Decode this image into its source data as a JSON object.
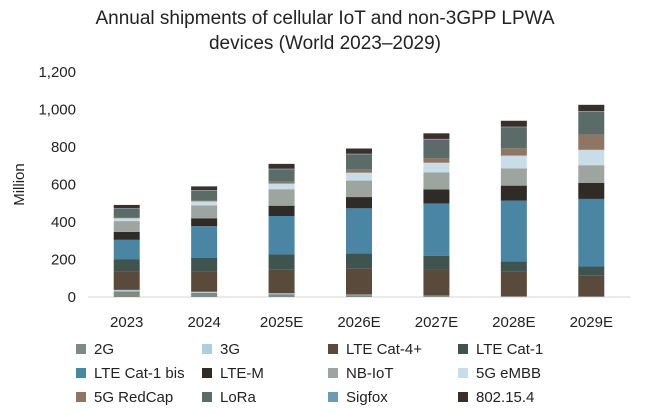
{
  "chart_data": {
    "type": "bar",
    "stacked": true,
    "title_lines": [
      "Annual shipments of cellular IoT and non-3GPP LPWA",
      "devices (World 2023–2029)"
    ],
    "ylabel": "Million",
    "xlabel": "",
    "ylim": [
      0,
      1200
    ],
    "yticks": [
      0,
      200,
      400,
      600,
      800,
      1000,
      1200
    ],
    "ytick_labels": [
      "0",
      "200",
      "400",
      "600",
      "800",
      "1,000",
      "1,200"
    ],
    "categories": [
      "2023",
      "2024",
      "2025E",
      "2026E",
      "2027E",
      "2028E",
      "2029E"
    ],
    "series": [
      {
        "name": "2G",
        "color": "#7d8b84",
        "values": [
          30,
          22,
          15,
          10,
          5,
          3,
          2
        ]
      },
      {
        "name": "3G",
        "color": "#aecdde",
        "values": [
          8,
          6,
          5,
          3,
          2,
          1,
          1
        ]
      },
      {
        "name": "LTE Cat-4+",
        "color": "#5a4a3c",
        "values": [
          100,
          110,
          125,
          140,
          140,
          130,
          110
        ]
      },
      {
        "name": "LTE Cat-1",
        "color": "#3f544f",
        "values": [
          62,
          70,
          82,
          80,
          72,
          55,
          50
        ]
      },
      {
        "name": "LTE Cat-1 bis",
        "color": "#4a85a4",
        "values": [
          105,
          170,
          205,
          240,
          280,
          325,
          360
        ]
      },
      {
        "name": "LTE-M",
        "color": "#2f2b27",
        "values": [
          42,
          42,
          55,
          60,
          75,
          80,
          85
        ]
      },
      {
        "name": "NB-IoT",
        "color": "#9ea5a0",
        "values": [
          58,
          68,
          88,
          88,
          90,
          92,
          95
        ]
      },
      {
        "name": "5G eMBB",
        "color": "#c9dde8",
        "values": [
          15,
          22,
          30,
          42,
          52,
          68,
          82
        ]
      },
      {
        "name": "5G RedCap",
        "color": "#8f7563",
        "values": [
          2,
          5,
          10,
          16,
          25,
          40,
          82
        ]
      },
      {
        "name": "LoRa",
        "color": "#5a6b68",
        "values": [
          48,
          52,
          66,
          82,
          98,
          110,
          120
        ]
      },
      {
        "name": "Sigfox",
        "color": "#6e9bb2",
        "values": [
          3,
          3,
          3,
          3,
          4,
          4,
          4
        ]
      },
      {
        "name": "802.15.4",
        "color": "#3a302b",
        "values": [
          18,
          20,
          26,
          28,
          30,
          32,
          34
        ]
      }
    ],
    "legend_position": "bottom",
    "grid": false
  }
}
